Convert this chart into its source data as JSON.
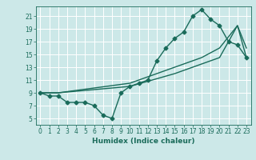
{
  "title": "",
  "xlabel": "Humidex (Indice chaleur)",
  "bg_color": "#cce8e8",
  "grid_color": "#ffffff",
  "line_color": "#1a6b5a",
  "xlim": [
    -0.5,
    23.5
  ],
  "ylim": [
    4.0,
    22.5
  ],
  "xticks": [
    0,
    1,
    2,
    3,
    4,
    5,
    6,
    7,
    8,
    9,
    10,
    11,
    12,
    13,
    14,
    15,
    16,
    17,
    18,
    19,
    20,
    21,
    22,
    23
  ],
  "yticks": [
    5,
    7,
    9,
    11,
    13,
    15,
    17,
    19,
    21
  ],
  "line1_x": [
    0,
    1,
    2,
    3,
    4,
    5,
    6,
    7,
    8,
    9,
    10,
    11,
    12,
    13,
    14,
    15,
    16,
    17,
    18,
    19,
    20,
    21,
    22,
    23
  ],
  "line1_y": [
    9,
    8.5,
    8.5,
    7.5,
    7.5,
    7.5,
    7,
    5.5,
    5,
    9,
    10,
    10.5,
    11,
    14,
    16,
    17.5,
    18.5,
    21,
    22,
    20.5,
    19.5,
    17,
    16.5,
    14.5
  ],
  "line2_x": [
    0,
    2,
    10,
    15,
    17,
    18,
    20,
    22,
    23
  ],
  "line2_y": [
    9,
    9,
    10,
    12,
    13,
    13.5,
    14.5,
    19.5,
    14.5
  ],
  "line3_x": [
    0,
    2,
    10,
    15,
    17,
    18,
    20,
    22,
    23
  ],
  "line3_y": [
    9,
    9,
    10.5,
    13,
    14,
    14.5,
    16,
    19.5,
    16
  ],
  "marker": "D",
  "markersize": 2.5,
  "linewidth": 1.0,
  "tick_fontsize": 5.5,
  "xlabel_fontsize": 6.5
}
